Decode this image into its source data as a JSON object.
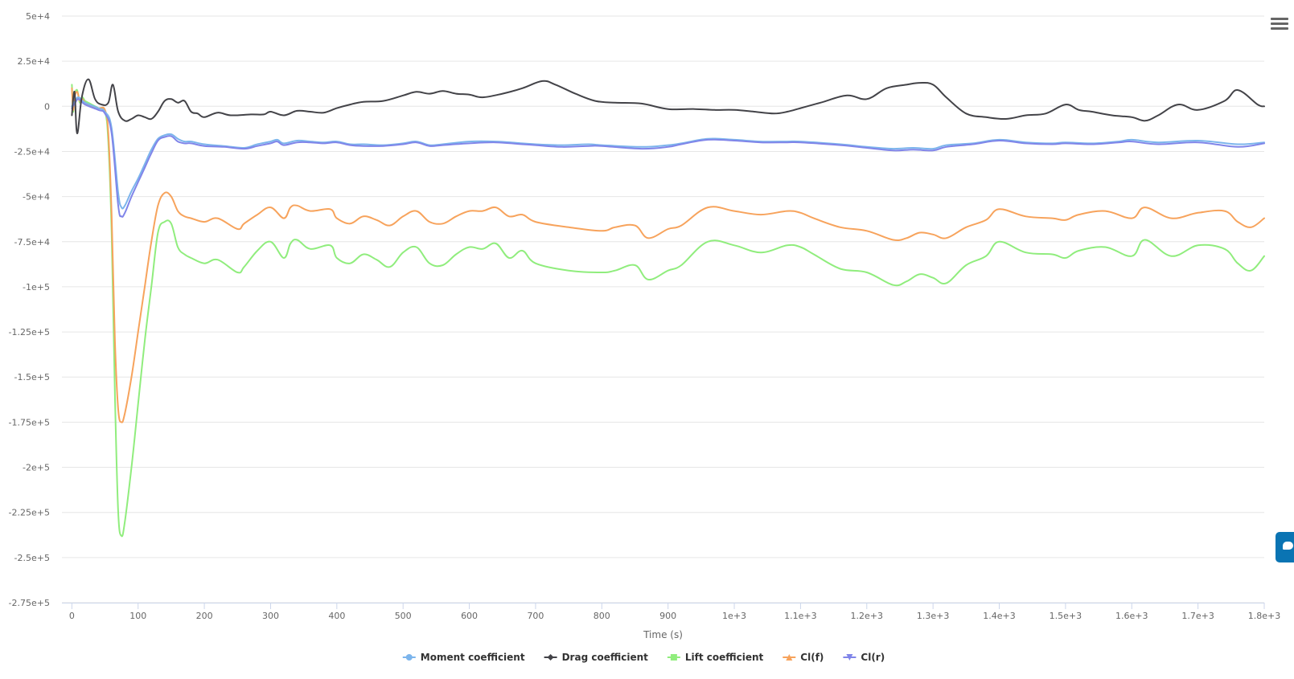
{
  "chart_data": {
    "type": "line",
    "title": "",
    "xlabel": "Time (s)",
    "ylabel": "",
    "xlim": [
      -15,
      1800
    ],
    "ylim": [
      -275000,
      50000
    ],
    "x_ticks": [
      0,
      100,
      200,
      300,
      400,
      500,
      600,
      700,
      800,
      900,
      1000,
      1100,
      1200,
      1300,
      1400,
      1500,
      1600,
      1700,
      1800
    ],
    "x_tick_labels": [
      "0",
      "100",
      "200",
      "300",
      "400",
      "500",
      "600",
      "700",
      "800",
      "900",
      "1e+3",
      "1.1e+3",
      "1.2e+3",
      "1.3e+3",
      "1.4e+3",
      "1.5e+3",
      "1.6e+3",
      "1.7e+3",
      "1.8e+3"
    ],
    "y_ticks": [
      50000,
      25000,
      0,
      -25000,
      -50000,
      -75000,
      -100000,
      -125000,
      -150000,
      -175000,
      -200000,
      -225000,
      -250000,
      -275000
    ],
    "y_tick_labels": [
      "5e+4",
      "2.5e+4",
      "0",
      "-2.5e+4",
      "-5e+4",
      "-7.5e+4",
      "-1e+5",
      "-1.25e+5",
      "-1.5e+5",
      "-1.75e+5",
      "-2e+5",
      "-2.25e+5",
      "-2.5e+5",
      "-2.75e+5"
    ],
    "grid": "horizontal",
    "legend_position": "bottom-center",
    "series": [
      {
        "name": "Moment coefficient",
        "color": "#7cb5ec",
        "marker": "circle",
        "x": [
          0,
          5,
          10,
          20,
          40,
          50,
          60,
          70,
          75,
          80,
          90,
          100,
          110,
          120,
          130,
          140,
          150,
          160,
          170,
          180,
          200,
          230,
          260,
          280,
          300,
          310,
          320,
          340,
          360,
          380,
          400,
          420,
          440,
          470,
          500,
          520,
          540,
          560,
          600,
          640,
          680,
          700,
          740,
          780,
          800,
          860,
          900,
          920,
          960,
          1000,
          1040,
          1080,
          1100,
          1160,
          1200,
          1240,
          1270,
          1300,
          1320,
          1360,
          1400,
          1440,
          1480,
          1500,
          1540,
          1580,
          1600,
          1640,
          1700,
          1760,
          1800
        ],
        "y": [
          0,
          3000,
          5000,
          2000,
          -1000,
          -3000,
          -12000,
          -48000,
          -56000,
          -55000,
          -47000,
          -40000,
          -32000,
          -24000,
          -18000,
          -16000,
          -15500,
          -18000,
          -19500,
          -19500,
          -21000,
          -22000,
          -23000,
          -21000,
          -19500,
          -18500,
          -20500,
          -19000,
          -19500,
          -20000,
          -19500,
          -21000,
          -21000,
          -21500,
          -20500,
          -19500,
          -21500,
          -21000,
          -19500,
          -19500,
          -20500,
          -21000,
          -21500,
          -21000,
          -21500,
          -22500,
          -21500,
          -20500,
          -18000,
          -18500,
          -19500,
          -19500,
          -19500,
          -21000,
          -22500,
          -23500,
          -23000,
          -23500,
          -21500,
          -20500,
          -18500,
          -20000,
          -20500,
          -20000,
          -20500,
          -19500,
          -18500,
          -20000,
          -19000,
          -21000,
          -20000
        ]
      },
      {
        "name": "Drag coefficient",
        "color": "#434348",
        "marker": "diamond",
        "x": [
          0,
          4,
          8,
          15,
          25,
          35,
          45,
          55,
          62,
          70,
          80,
          90,
          100,
          110,
          120,
          130,
          140,
          150,
          160,
          170,
          180,
          190,
          200,
          220,
          240,
          270,
          290,
          300,
          320,
          340,
          360,
          380,
          400,
          420,
          440,
          470,
          500,
          520,
          540,
          560,
          580,
          600,
          620,
          650,
          680,
          710,
          730,
          760,
          790,
          820,
          860,
          900,
          940,
          970,
          1000,
          1030,
          1060,
          1080,
          1100,
          1130,
          1170,
          1200,
          1230,
          1260,
          1280,
          1300,
          1320,
          1350,
          1380,
          1410,
          1440,
          1470,
          1500,
          1520,
          1540,
          1570,
          1600,
          1620,
          1640,
          1670,
          1700,
          1740,
          1760,
          1790,
          1800
        ],
        "y": [
          -5000,
          8000,
          -15000,
          5000,
          15000,
          4000,
          1000,
          2000,
          12000,
          -3000,
          -8000,
          -7000,
          -5000,
          -6000,
          -7000,
          -3000,
          3000,
          4000,
          2000,
          3000,
          -3000,
          -4000,
          -6000,
          -3500,
          -5000,
          -4500,
          -4500,
          -3000,
          -5000,
          -2500,
          -3000,
          -3500,
          -1000,
          1000,
          2500,
          3000,
          6000,
          8000,
          7000,
          8500,
          7000,
          6500,
          5000,
          7000,
          10000,
          14000,
          12000,
          7000,
          3000,
          2000,
          1500,
          -1500,
          -1500,
          -2000,
          -2000,
          -3000,
          -4000,
          -3000,
          -1000,
          2000,
          6000,
          4000,
          10000,
          12000,
          13000,
          12000,
          5000,
          -4000,
          -6000,
          -7000,
          -5000,
          -4000,
          1000,
          -2000,
          -3000,
          -5000,
          -6000,
          -8000,
          -5000,
          1000,
          -2000,
          3000,
          9000,
          1000,
          0
        ]
      },
      {
        "name": "Lift coefficient",
        "color": "#90ed7d",
        "marker": "square",
        "x": [
          0,
          2,
          4,
          8,
          12,
          16,
          20,
          30,
          40,
          50,
          55,
          60,
          65,
          70,
          75,
          80,
          90,
          100,
          110,
          120,
          130,
          140,
          150,
          160,
          170,
          180,
          200,
          220,
          250,
          260,
          280,
          300,
          320,
          330,
          340,
          360,
          390,
          400,
          420,
          440,
          460,
          480,
          500,
          520,
          540,
          560,
          580,
          600,
          620,
          640,
          660,
          680,
          700,
          750,
          800,
          820,
          850,
          870,
          900,
          920,
          960,
          1000,
          1040,
          1080,
          1100,
          1120,
          1160,
          1200,
          1240,
          1260,
          1280,
          1300,
          1320,
          1350,
          1380,
          1400,
          1440,
          1480,
          1500,
          1520,
          1560,
          1600,
          1620,
          1660,
          1700,
          1740,
          1760,
          1780,
          1800
        ],
        "y": [
          12000,
          -3000,
          6000,
          9000,
          2000,
          5000,
          3000,
          1000,
          -1000,
          -3000,
          -20000,
          -70000,
          -160000,
          -225000,
          -238000,
          -230000,
          -200000,
          -165000,
          -130000,
          -100000,
          -70000,
          -64000,
          -65000,
          -78000,
          -82000,
          -84000,
          -87000,
          -85000,
          -92000,
          -89000,
          -80000,
          -75000,
          -84000,
          -76000,
          -74000,
          -79000,
          -77000,
          -84000,
          -87000,
          -82000,
          -85000,
          -89000,
          -81000,
          -78000,
          -87000,
          -88000,
          -82000,
          -78000,
          -79000,
          -76000,
          -84000,
          -80000,
          -87000,
          -91000,
          -92000,
          -91000,
          -88000,
          -96000,
          -91000,
          -88000,
          -75000,
          -77000,
          -81000,
          -77000,
          -78000,
          -82000,
          -90000,
          -92000,
          -99000,
          -97000,
          -93000,
          -95000,
          -98000,
          -88000,
          -83000,
          -75000,
          -81000,
          -82000,
          -84000,
          -80000,
          -78000,
          -83000,
          -74000,
          -83000,
          -77000,
          -79000,
          -87000,
          -91000,
          -83000
        ]
      },
      {
        "name": "Cl(f)",
        "color": "#f7a35c",
        "marker": "triangle",
        "x": [
          0,
          2,
          4,
          8,
          12,
          16,
          20,
          30,
          40,
          50,
          55,
          60,
          65,
          70,
          75,
          80,
          90,
          100,
          110,
          120,
          130,
          140,
          150,
          160,
          170,
          180,
          200,
          220,
          250,
          260,
          280,
          300,
          320,
          330,
          340,
          360,
          390,
          400,
          420,
          440,
          460,
          480,
          500,
          520,
          540,
          560,
          580,
          600,
          620,
          640,
          660,
          680,
          700,
          750,
          800,
          820,
          850,
          870,
          900,
          920,
          960,
          1000,
          1040,
          1080,
          1100,
          1120,
          1160,
          1200,
          1240,
          1260,
          1280,
          1300,
          1320,
          1350,
          1380,
          1400,
          1440,
          1480,
          1500,
          1520,
          1560,
          1600,
          1620,
          1660,
          1700,
          1740,
          1760,
          1780,
          1800
        ],
        "y": [
          10000,
          -2000,
          5000,
          8000,
          3000,
          4000,
          2000,
          0,
          -1000,
          -2000,
          -15000,
          -60000,
          -130000,
          -168000,
          -175000,
          -170000,
          -150000,
          -125000,
          -100000,
          -75000,
          -55000,
          -48000,
          -50000,
          -58000,
          -61000,
          -62000,
          -64000,
          -62000,
          -68000,
          -65000,
          -60000,
          -56000,
          -62000,
          -56000,
          -55000,
          -58000,
          -57000,
          -62000,
          -65000,
          -61000,
          -63000,
          -66000,
          -61000,
          -58000,
          -64000,
          -65000,
          -61000,
          -58000,
          -58000,
          -56000,
          -61000,
          -60000,
          -64000,
          -67000,
          -69000,
          -67000,
          -66000,
          -73000,
          -68000,
          -66000,
          -56000,
          -58000,
          -60000,
          -58000,
          -59000,
          -62000,
          -67000,
          -69000,
          -74000,
          -73000,
          -70000,
          -71000,
          -73000,
          -67000,
          -63000,
          -57000,
          -61000,
          -62000,
          -63000,
          -60000,
          -58000,
          -62000,
          -56000,
          -62000,
          -59000,
          -58000,
          -64000,
          -67000,
          -62000
        ]
      },
      {
        "name": "Cl(r)",
        "color": "#8085e9",
        "marker": "triangle-down",
        "x": [
          0,
          5,
          10,
          20,
          40,
          50,
          60,
          70,
          75,
          80,
          90,
          100,
          110,
          120,
          130,
          140,
          150,
          160,
          170,
          180,
          200,
          230,
          260,
          280,
          300,
          310,
          320,
          340,
          360,
          380,
          400,
          420,
          440,
          470,
          500,
          520,
          540,
          560,
          600,
          640,
          680,
          700,
          740,
          780,
          800,
          860,
          900,
          920,
          960,
          1000,
          1040,
          1080,
          1100,
          1160,
          1200,
          1240,
          1270,
          1300,
          1320,
          1360,
          1400,
          1440,
          1480,
          1500,
          1540,
          1580,
          1600,
          1640,
          1700,
          1760,
          1800
        ],
        "y": [
          -1000,
          2000,
          4000,
          1000,
          -2000,
          -4000,
          -15000,
          -55000,
          -61000,
          -59000,
          -50000,
          -42000,
          -34000,
          -26000,
          -19000,
          -17000,
          -16500,
          -19500,
          -20500,
          -20500,
          -22000,
          -22500,
          -23500,
          -22000,
          -20500,
          -19500,
          -21500,
          -20000,
          -20000,
          -20500,
          -20000,
          -21500,
          -22000,
          -22000,
          -21000,
          -20000,
          -22000,
          -21500,
          -20500,
          -20000,
          -21000,
          -21500,
          -22500,
          -22000,
          -22000,
          -23500,
          -22500,
          -21000,
          -18500,
          -19000,
          -20000,
          -20000,
          -20000,
          -21500,
          -23000,
          -24500,
          -24000,
          -24500,
          -22500,
          -21000,
          -19000,
          -20500,
          -21000,
          -20500,
          -21000,
          -20000,
          -19500,
          -21000,
          -20000,
          -22500,
          -20500
        ]
      }
    ]
  }
}
